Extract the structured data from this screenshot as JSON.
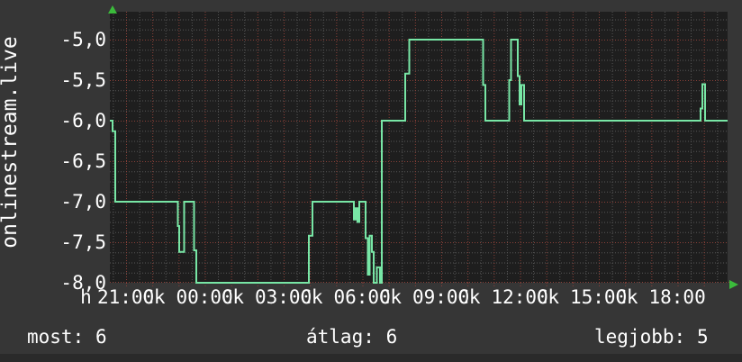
{
  "chart_data": {
    "type": "line",
    "title": "",
    "ylabel": "onlinestream.live",
    "ylim": [
      -8.0,
      -5.0
    ],
    "x_unit": "hours_since_21:00_first_day",
    "x_range_hours": [
      -0.62,
      22.9
    ],
    "grid": "on",
    "y_ticks": [
      {
        "label": "-5,0",
        "value": -5.0
      },
      {
        "label": "-5,5",
        "value": -5.5
      },
      {
        "label": "-6,0",
        "value": -6.0
      },
      {
        "label": "-6,5",
        "value": -6.5
      },
      {
        "label": "-7,0",
        "value": -7.0
      },
      {
        "label": "-7,5",
        "value": -7.5
      },
      {
        "label": "-8,0",
        "value": -8.0
      }
    ],
    "x_prefix": {
      "label": "h",
      "hour": -1.54
    },
    "x_ticks": [
      {
        "label": "21:00",
        "hour": 0,
        "suffix": "Ck"
      },
      {
        "label": "00:00",
        "hour": 3,
        "suffix": "Ck"
      },
      {
        "label": "03:00",
        "hour": 6,
        "suffix": "Ck"
      },
      {
        "label": "06:00",
        "hour": 9,
        "suffix": "Ck"
      },
      {
        "label": "09:00",
        "hour": 12,
        "suffix": "Ck"
      },
      {
        "label": "12:00",
        "hour": 15,
        "suffix": "Ck"
      },
      {
        "label": "15:00",
        "hour": 18,
        "suffix": "Ck"
      },
      {
        "label": "18:00",
        "hour": 21,
        "suffix": ""
      }
    ],
    "series": [
      {
        "name": "onlinestream.live",
        "points": [
          [
            -0.617,
            -6.0
          ],
          [
            -0.514,
            -6.0
          ],
          [
            -0.514,
            -6.13
          ],
          [
            -0.411,
            -6.13
          ],
          [
            -0.411,
            -7.0
          ],
          [
            1.971,
            -7.0
          ],
          [
            1.971,
            -7.3
          ],
          [
            2.023,
            -7.3
          ],
          [
            2.023,
            -7.62
          ],
          [
            2.211,
            -7.62
          ],
          [
            2.211,
            -7.0
          ],
          [
            2.589,
            -7.0
          ],
          [
            2.589,
            -7.6
          ],
          [
            2.674,
            -7.6
          ],
          [
            2.674,
            -8.0
          ],
          [
            6.96,
            -8.0
          ],
          [
            6.96,
            -7.42
          ],
          [
            7.097,
            -7.42
          ],
          [
            7.097,
            -7.0
          ],
          [
            8.674,
            -7.0
          ],
          [
            8.674,
            -7.22
          ],
          [
            8.743,
            -7.22
          ],
          [
            8.743,
            -7.08
          ],
          [
            8.811,
            -7.08
          ],
          [
            8.811,
            -7.25
          ],
          [
            8.88,
            -7.25
          ],
          [
            8.88,
            -7.0
          ],
          [
            9.12,
            -7.0
          ],
          [
            9.12,
            -7.45
          ],
          [
            9.206,
            -7.45
          ],
          [
            9.206,
            -7.9
          ],
          [
            9.274,
            -7.9
          ],
          [
            9.274,
            -7.42
          ],
          [
            9.36,
            -7.42
          ],
          [
            9.36,
            -7.62
          ],
          [
            9.429,
            -7.62
          ],
          [
            9.429,
            -8.0
          ],
          [
            9.549,
            -8.0
          ],
          [
            9.549,
            -7.81
          ],
          [
            9.669,
            -7.81
          ],
          [
            9.669,
            -8.0
          ],
          [
            9.737,
            -8.0
          ],
          [
            9.737,
            -6.0
          ],
          [
            10.629,
            -6.0
          ],
          [
            10.629,
            -5.42
          ],
          [
            10.783,
            -5.42
          ],
          [
            10.783,
            -5.0
          ],
          [
            13.594,
            -5.0
          ],
          [
            13.594,
            -5.56
          ],
          [
            13.68,
            -5.56
          ],
          [
            13.68,
            -6.0
          ],
          [
            14.589,
            -6.0
          ],
          [
            14.589,
            -5.5
          ],
          [
            14.657,
            -5.5
          ],
          [
            14.657,
            -5.0
          ],
          [
            14.914,
            -5.0
          ],
          [
            14.914,
            -5.45
          ],
          [
            14.983,
            -5.45
          ],
          [
            14.983,
            -5.8
          ],
          [
            15.051,
            -5.8
          ],
          [
            15.051,
            -5.56
          ],
          [
            15.154,
            -5.56
          ],
          [
            15.154,
            -6.0
          ],
          [
            21.874,
            -6.0
          ],
          [
            21.874,
            -5.85
          ],
          [
            21.943,
            -5.85
          ],
          [
            21.943,
            -5.55
          ],
          [
            22.046,
            -5.55
          ],
          [
            22.046,
            -6.0
          ],
          [
            22.903,
            -6.0
          ]
        ]
      }
    ],
    "style": {
      "bg": "#363636",
      "plot_bg": "#1e1e1e",
      "grid_minor": "#555555",
      "grid_major": "#8a4038",
      "line": "#78e6a5",
      "text": "#ffffff",
      "arrow": "#3bbb3b",
      "bottom_strip": "#2a2a2a"
    }
  },
  "summary": [
    {
      "label": "most:",
      "value": "6"
    },
    {
      "label": "átlag:",
      "value": "6"
    },
    {
      "label": "legjobb:",
      "value": "5"
    }
  ]
}
